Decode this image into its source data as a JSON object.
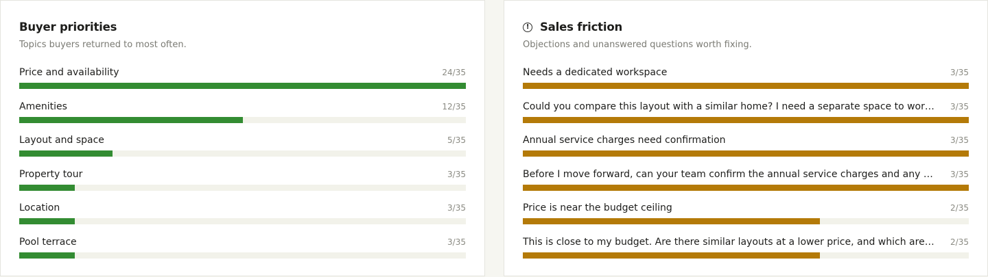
{
  "buyer_priorities": {
    "title": "Buyer priorities",
    "subtitle": "Topics buyers returned to most often.",
    "bar_color": "#338c32",
    "items": [
      {
        "label": "Price and availability",
        "count": "24/35",
        "value": 24,
        "total": 35
      },
      {
        "label": "Amenities",
        "count": "12/35",
        "value": 12,
        "total": 35
      },
      {
        "label": "Layout and space",
        "count": "5/35",
        "value": 5,
        "total": 35
      },
      {
        "label": "Property tour",
        "count": "3/35",
        "value": 3,
        "total": 35
      },
      {
        "label": "Location",
        "count": "3/35",
        "value": 3,
        "total": 35
      },
      {
        "label": "Pool terrace",
        "count": "3/35",
        "value": 3,
        "total": 35
      }
    ]
  },
  "sales_friction": {
    "title": "Sales friction",
    "icon": "alert-circle-icon",
    "subtitle": "Objections and unanswered questions worth fixing.",
    "bar_color": "#b47a08",
    "items": [
      {
        "label": "Needs a dedicated workspace",
        "count": "3/35",
        "value": 3,
        "max": 3
      },
      {
        "label": "Could you compare this layout with a similar home? I need a separate space to work from home.",
        "count": "3/35",
        "value": 3,
        "max": 3
      },
      {
        "label": "Annual service charges need confirmation",
        "count": "3/35",
        "value": 3,
        "max": 3
      },
      {
        "label": "Before I move forward, can your team confirm the annual service charges and any additional fees?",
        "count": "3/35",
        "value": 3,
        "max": 3
      },
      {
        "label": "Price is near the budget ceiling",
        "count": "2/35",
        "value": 2,
        "max": 3
      },
      {
        "label": "This is close to my budget. Are there similar layouts at a lower price, and which are still available?",
        "count": "2/35",
        "value": 2,
        "max": 3
      }
    ]
  }
}
